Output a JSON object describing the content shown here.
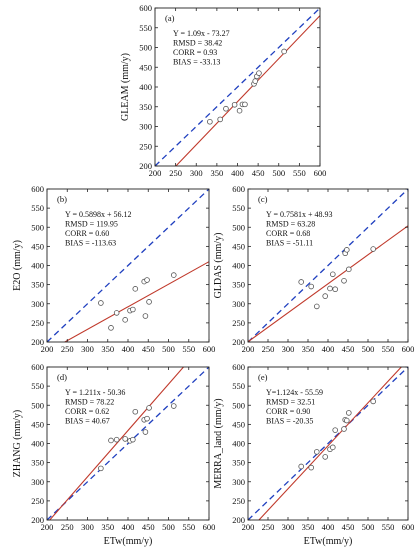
{
  "colors": {
    "one_to_one": "#1f3fbf",
    "fit": "#c0392b",
    "points": "#555555",
    "axes": "#222222"
  },
  "chart_data": [
    {
      "type": "scatter",
      "panel_label": "(a)",
      "ylabel": "GLEAM  (mm/y)",
      "xlabel": "",
      "xlim": [
        200,
        600
      ],
      "ylim": [
        200,
        600
      ],
      "xticks": [
        200,
        250,
        300,
        350,
        400,
        450,
        500,
        550,
        600
      ],
      "yticks": [
        200,
        250,
        300,
        350,
        400,
        450,
        500,
        550,
        600
      ],
      "stats": [
        "Y = 1.09x - 73.27",
        "RMSD = 38.42",
        "CORR = 0.93",
        "BIAS = -33.13"
      ],
      "fit": {
        "slope": 1.09,
        "intercept": -73.27
      },
      "x": [
        333,
        358,
        372,
        393,
        405,
        412,
        418,
        440,
        443,
        447,
        452,
        513
      ],
      "y": [
        312,
        318,
        345,
        355,
        340,
        356,
        356,
        408,
        415,
        427,
        435,
        490
      ]
    },
    {
      "type": "scatter",
      "panel_label": "(b)",
      "ylabel": "E2O  (mm/y)",
      "xlabel": "",
      "xlim": [
        200,
        600
      ],
      "ylim": [
        200,
        600
      ],
      "xticks": [
        200,
        250,
        300,
        350,
        400,
        450,
        500,
        550,
        600
      ],
      "yticks": [
        200,
        250,
        300,
        350,
        400,
        450,
        500,
        550,
        600
      ],
      "stats": [
        "Y = 0.5898x + 56.12",
        "RMSD = 119.95",
        "CORR = 0.60",
        "BIAS = -113.63"
      ],
      "fit": {
        "slope": 0.5898,
        "intercept": 56.12
      },
      "x": [
        333,
        358,
        372,
        393,
        405,
        412,
        418,
        440,
        443,
        447,
        452,
        513
      ],
      "y": [
        302,
        237,
        276,
        258,
        282,
        285,
        339,
        358,
        268,
        362,
        305,
        375
      ]
    },
    {
      "type": "scatter",
      "panel_label": "(c)",
      "ylabel": "GLDAS  (mm/y)",
      "xlabel": "",
      "xlim": [
        200,
        600
      ],
      "ylim": [
        200,
        600
      ],
      "xticks": [
        200,
        250,
        300,
        350,
        400,
        450,
        500,
        550,
        600
      ],
      "yticks": [
        200,
        250,
        300,
        350,
        400,
        450,
        500,
        550,
        600
      ],
      "stats": [
        "Y = 0.7581x + 48.93",
        "RMSD = 63.28",
        "CORR = 0.68",
        "BIAS = -51.11"
      ],
      "fit": {
        "slope": 0.7581,
        "intercept": 48.93
      },
      "x": [
        333,
        358,
        372,
        393,
        405,
        412,
        418,
        440,
        443,
        447,
        452,
        513
      ],
      "y": [
        357,
        345,
        293,
        320,
        340,
        377,
        338,
        360,
        432,
        441,
        390,
        443
      ]
    },
    {
      "type": "scatter",
      "panel_label": "(d)",
      "ylabel": "ZHANG  (mm/y)",
      "xlabel": "ETw(mm/y)",
      "xlim": [
        200,
        600
      ],
      "ylim": [
        200,
        600
      ],
      "xticks": [
        200,
        250,
        300,
        350,
        400,
        450,
        500,
        550,
        600
      ],
      "yticks": [
        200,
        250,
        300,
        350,
        400,
        450,
        500,
        550,
        600
      ],
      "stats": [
        "Y = 1.211x - 50.36",
        "RMSD = 78.22",
        "CORR = 0.62",
        "BIAS = 40.67"
      ],
      "fit": {
        "slope": 1.211,
        "intercept": -50.36
      },
      "x": [
        333,
        358,
        372,
        393,
        405,
        412,
        418,
        440,
        443,
        447,
        452,
        513
      ],
      "y": [
        335,
        408,
        410,
        412,
        407,
        410,
        483,
        462,
        430,
        465,
        493,
        498
      ]
    },
    {
      "type": "scatter",
      "panel_label": "(e)",
      "ylabel": "MERRA_land  (mm/y)",
      "xlabel": "ETw(mm/y)",
      "xlim": [
        200,
        600
      ],
      "ylim": [
        200,
        600
      ],
      "xticks": [
        200,
        250,
        300,
        350,
        400,
        450,
        500,
        550,
        600
      ],
      "yticks": [
        200,
        250,
        300,
        350,
        400,
        450,
        500,
        550,
        600
      ],
      "stats": [
        "Y=1.124x - 55.59",
        "RMSD = 32.51",
        "CORR = 0.90",
        "BIAS = -20.35"
      ],
      "fit": {
        "slope": 1.124,
        "intercept": -55.59
      },
      "x": [
        333,
        358,
        372,
        393,
        405,
        412,
        418,
        440,
        443,
        447,
        452,
        513
      ],
      "y": [
        340,
        337,
        378,
        365,
        385,
        390,
        435,
        438,
        462,
        460,
        480,
        510
      ]
    }
  ]
}
